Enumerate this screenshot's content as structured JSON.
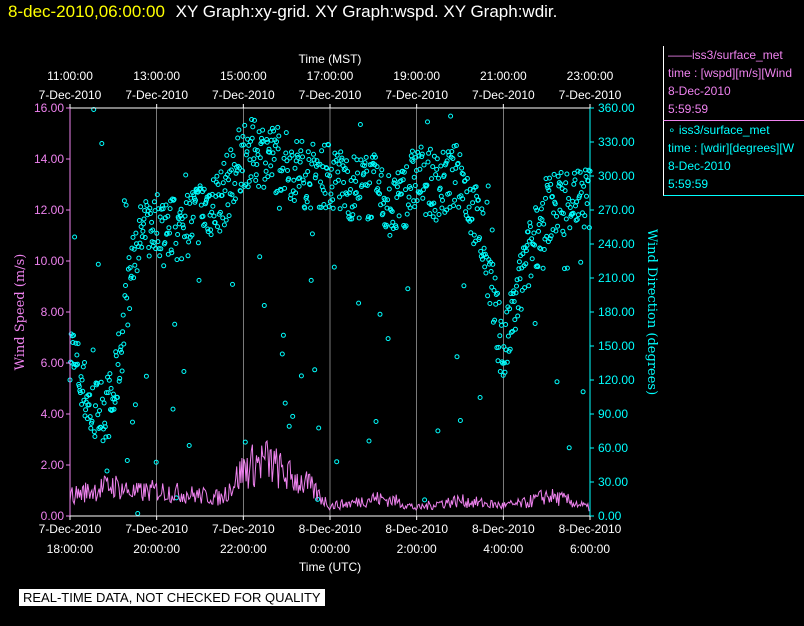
{
  "header": {
    "timestamp": "8-dec-2010,06:00:00",
    "titles": "XY Graph:xy-grid.  XY Graph:wspd.  XY Graph:wdir."
  },
  "legend": {
    "series1": {
      "line1": "——iss3/surface_met",
      "line2": "time : [wspd][m/s][Wind",
      "line3": "8-Dec-2010",
      "line4": "5:59:59"
    },
    "series2": {
      "line1": "∘ iss3/surface_met",
      "line2": "time : [wdir][degrees][W",
      "line3": "8-Dec-2010",
      "line4": "5:59:59"
    }
  },
  "footer": {
    "text": "REAL-TIME DATA, NOT CHECKED FOR QUALITY"
  },
  "colors": {
    "wspd": "#ee82ee",
    "wdir": "#00ffff",
    "grid": "#ffffff",
    "background": "#000000"
  },
  "chart_data": {
    "type": "line",
    "top_axis_title": "Time (MST)",
    "bottom_axis_title": "Time (UTC)",
    "ylabel_left": "Wind Speed (m/s)",
    "ylabel_right": "Wind Direction (degrees)",
    "top_ticks": [
      {
        "time": "11:00:00",
        "date": "7-Dec-2010"
      },
      {
        "time": "13:00:00",
        "date": "7-Dec-2010"
      },
      {
        "time": "15:00:00",
        "date": "7-Dec-2010"
      },
      {
        "time": "17:00:00",
        "date": "7-Dec-2010"
      },
      {
        "time": "19:00:00",
        "date": "7-Dec-2010"
      },
      {
        "time": "21:00:00",
        "date": "7-Dec-2010"
      },
      {
        "time": "23:00:00",
        "date": "7-Dec-2010"
      }
    ],
    "bottom_ticks": [
      {
        "date": "7-Dec-2010",
        "time": "18:00:00"
      },
      {
        "date": "7-Dec-2010",
        "time": "20:00:00"
      },
      {
        "date": "7-Dec-2010",
        "time": "22:00:00"
      },
      {
        "date": "8-Dec-2010",
        "time": "0:00:00"
      },
      {
        "date": "8-Dec-2010",
        "time": "2:00:00"
      },
      {
        "date": "8-Dec-2010",
        "time": "4:00:00"
      },
      {
        "date": "8-Dec-2010",
        "time": "6:00:00"
      }
    ],
    "x_hours_utc": [
      18,
      20,
      22,
      24,
      26,
      28,
      30
    ],
    "xlim_hours_utc": [
      18,
      30
    ],
    "ylim_left": [
      0,
      16
    ],
    "ylim_right": [
      0,
      360
    ],
    "yticks_left": [
      "0.00",
      "2.00",
      "4.00",
      "6.00",
      "8.00",
      "10.00",
      "12.00",
      "14.00",
      "16.00"
    ],
    "yticks_right": [
      "0.00",
      "30.00",
      "60.00",
      "90.00",
      "120.00",
      "150.00",
      "180.00",
      "210.00",
      "240.00",
      "270.00",
      "300.00",
      "330.00",
      "360.00"
    ],
    "grid": "vertical",
    "series": [
      {
        "name": "iss3/surface_met [wspd][m/s]",
        "axis": "left",
        "style": "line",
        "hours_utc": [
          18.0,
          18.5,
          19.0,
          19.5,
          20.0,
          20.5,
          21.0,
          21.5,
          22.0,
          22.5,
          23.0,
          23.5,
          24.0,
          24.5,
          25.0,
          25.5,
          26.0,
          26.5,
          27.0,
          27.5,
          28.0,
          28.5,
          29.0,
          29.5,
          30.0
        ],
        "values": [
          0.8,
          1.0,
          1.2,
          0.9,
          1.0,
          0.9,
          0.8,
          0.7,
          1.8,
          2.2,
          1.6,
          1.2,
          0.4,
          0.5,
          0.7,
          0.6,
          0.3,
          0.5,
          0.6,
          0.5,
          0.4,
          0.5,
          0.8,
          0.6,
          0.3
        ]
      },
      {
        "name": "iss3/surface_met [wdir][degrees]",
        "axis": "right",
        "style": "scatter",
        "hours_utc": [
          18.0,
          18.5,
          19.0,
          19.5,
          20.0,
          20.5,
          21.0,
          21.5,
          22.0,
          22.5,
          23.0,
          23.5,
          24.0,
          24.5,
          25.0,
          25.5,
          26.0,
          26.5,
          27.0,
          27.5,
          28.0,
          28.5,
          29.0,
          29.5,
          30.0
        ],
        "values": [
          150,
          90,
          100,
          240,
          260,
          250,
          270,
          280,
          320,
          320,
          310,
          300,
          300,
          290,
          290,
          270,
          300,
          290,
          300,
          250,
          140,
          220,
          270,
          280,
          280
        ]
      }
    ]
  }
}
